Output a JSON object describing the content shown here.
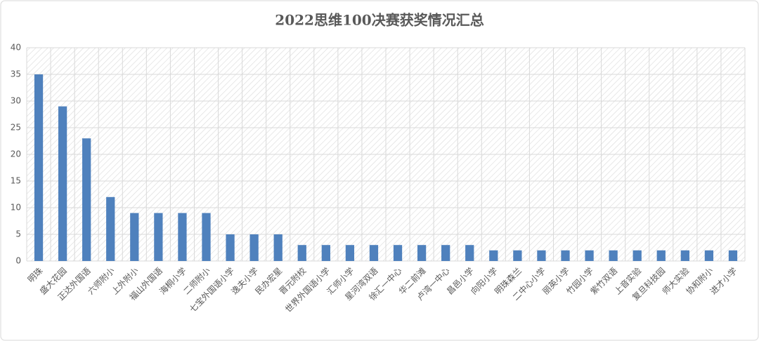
{
  "chart_data": {
    "type": "bar",
    "title": "2022思维100决赛获奖情况汇总",
    "categories": [
      "明珠",
      "盛大花园",
      "正达外国语",
      "六师附小",
      "上外附小",
      "福山外国语",
      "海桐小学",
      "二师附小",
      "七宝外国语小学",
      "逸夫小学",
      "民办宏星",
      "晋元附校",
      "世界外国语小学",
      "汇师小学",
      "星河湾双语",
      "徐汇一中心",
      "华二前滩",
      "卢湾一中心",
      "昌邑小学",
      "向阳小学",
      "明珠森兰",
      "二中心小学",
      "丽英小学",
      "竹园小学",
      "紫竹双语",
      "上音实验",
      "复旦科技园",
      "师大实验",
      "协和附小",
      "进才小学"
    ],
    "values": [
      35,
      29,
      23,
      12,
      9,
      9,
      9,
      9,
      5,
      5,
      5,
      3,
      3,
      3,
      3,
      3,
      3,
      3,
      3,
      2,
      2,
      2,
      2,
      2,
      2,
      2,
      2,
      2,
      2,
      2
    ],
    "color": "#4f81bd",
    "ylim": [
      0,
      40
    ],
    "yticks": [
      0,
      5,
      10,
      15,
      20,
      25,
      30,
      35,
      40
    ],
    "grid": true
  }
}
